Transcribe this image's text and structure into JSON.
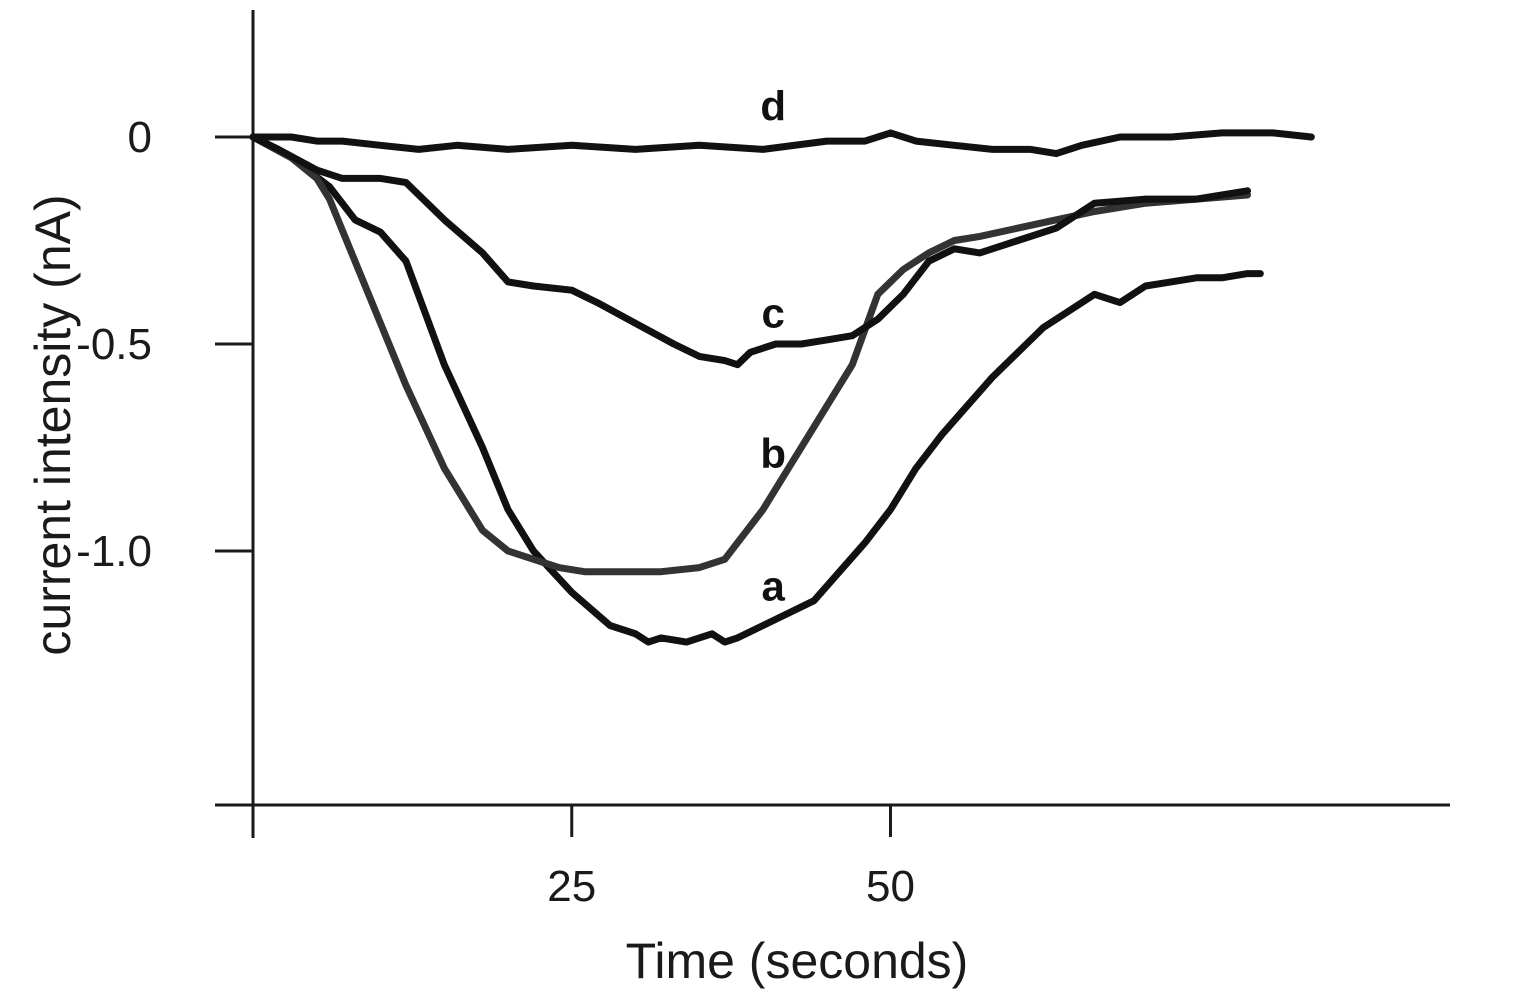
{
  "chart_data": {
    "type": "line",
    "title": "",
    "xlabel": "Time (seconds)",
    "ylabel": "current intensity (nA)",
    "xlim": [
      0,
      92
    ],
    "ylim": [
      -1.6,
      0.32
    ],
    "x_ticks": [
      {
        "value": 25,
        "label": "25"
      },
      {
        "value": 50,
        "label": "50"
      }
    ],
    "y_ticks": [
      {
        "value": 0,
        "label": "0"
      },
      {
        "value": -0.5,
        "label": "-0.5"
      },
      {
        "value": -1.0,
        "label": "-1.0"
      }
    ],
    "grid": false,
    "series": [
      {
        "name": "a",
        "color": "#111111",
        "x": [
          0,
          3,
          6,
          8,
          10,
          12,
          15,
          18,
          20,
          22,
          25,
          28,
          30,
          31,
          32,
          34,
          36,
          37,
          38,
          40,
          42,
          44,
          46,
          48,
          50,
          52,
          54,
          56,
          58,
          60,
          62,
          64,
          66,
          68,
          70,
          72,
          74,
          76,
          78,
          79
        ],
        "y": [
          0,
          -0.05,
          -0.12,
          -0.2,
          -0.23,
          -0.3,
          -0.55,
          -0.75,
          -0.9,
          -1.0,
          -1.1,
          -1.18,
          -1.2,
          -1.22,
          -1.21,
          -1.22,
          -1.2,
          -1.22,
          -1.21,
          -1.18,
          -1.15,
          -1.12,
          -1.05,
          -0.98,
          -0.9,
          -0.8,
          -0.72,
          -0.65,
          -0.58,
          -0.52,
          -0.46,
          -0.42,
          -0.38,
          -0.4,
          -0.36,
          -0.35,
          -0.34,
          -0.34,
          -0.33,
          -0.33
        ]
      },
      {
        "name": "b",
        "color": "#333333",
        "x": [
          0,
          3,
          5,
          6,
          8,
          10,
          12,
          15,
          18,
          20,
          22,
          24,
          26,
          28,
          30,
          32,
          35,
          37,
          40,
          42,
          45,
          47,
          49,
          51,
          53,
          55,
          57,
          60,
          63,
          66,
          70,
          74,
          78
        ],
        "y": [
          0,
          -0.05,
          -0.1,
          -0.15,
          -0.3,
          -0.45,
          -0.6,
          -0.8,
          -0.95,
          -1.0,
          -1.02,
          -1.04,
          -1.05,
          -1.05,
          -1.05,
          -1.05,
          -1.04,
          -1.02,
          -0.9,
          -0.8,
          -0.65,
          -0.55,
          -0.38,
          -0.32,
          -0.28,
          -0.25,
          -0.24,
          -0.22,
          -0.2,
          -0.18,
          -0.16,
          -0.15,
          -0.14
        ]
      },
      {
        "name": "c",
        "color": "#111111",
        "x": [
          0,
          2,
          5,
          7,
          10,
          12,
          15,
          18,
          20,
          22,
          25,
          27,
          30,
          33,
          35,
          37,
          38,
          39,
          41,
          43,
          45,
          47,
          49,
          51,
          53,
          55,
          57,
          60,
          63,
          66,
          70,
          74,
          78
        ],
        "y": [
          0,
          -0.03,
          -0.08,
          -0.1,
          -0.1,
          -0.11,
          -0.2,
          -0.28,
          -0.35,
          -0.36,
          -0.37,
          -0.4,
          -0.45,
          -0.5,
          -0.53,
          -0.54,
          -0.55,
          -0.52,
          -0.5,
          -0.5,
          -0.49,
          -0.48,
          -0.44,
          -0.38,
          -0.3,
          -0.27,
          -0.28,
          -0.25,
          -0.22,
          -0.16,
          -0.15,
          -0.15,
          -0.13
        ]
      },
      {
        "name": "d",
        "color": "#111111",
        "x": [
          0,
          3,
          5,
          7,
          10,
          13,
          16,
          20,
          25,
          30,
          35,
          40,
          45,
          48,
          50,
          52,
          55,
          58,
          61,
          63,
          65,
          68,
          72,
          76,
          80,
          83
        ],
        "y": [
          0,
          0,
          -0.01,
          -0.01,
          -0.02,
          -0.03,
          -0.02,
          -0.03,
          -0.02,
          -0.03,
          -0.02,
          -0.03,
          -0.01,
          -0.01,
          0.01,
          -0.01,
          -0.02,
          -0.03,
          -0.03,
          -0.04,
          -0.02,
          0.0,
          0.0,
          0.01,
          0.01,
          0.0
        ]
      }
    ],
    "series_labels": [
      {
        "series": "a",
        "text": "a",
        "x": 40.8,
        "y": -1.12
      },
      {
        "series": "b",
        "text": "b",
        "x": 40.8,
        "y": -0.8
      },
      {
        "series": "c",
        "text": "c",
        "x": 40.8,
        "y": -0.46
      },
      {
        "series": "d",
        "text": "d",
        "x": 40.8,
        "y": 0.04
      }
    ]
  }
}
